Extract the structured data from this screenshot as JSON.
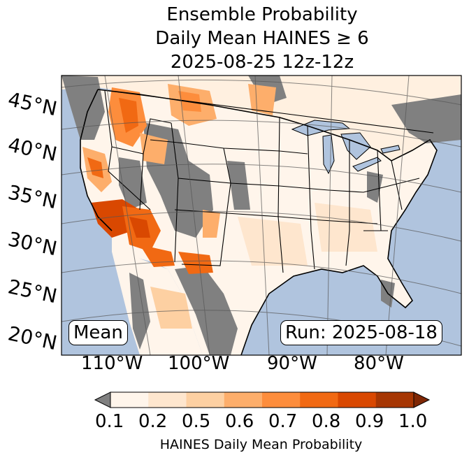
{
  "title": {
    "line1": "Ensemble Probability",
    "line2": "Daily Mean HAINES ≥ 6",
    "line3": "2025-08-25 12z-12z"
  },
  "map": {
    "lat_labels": [
      "45°N",
      "40°N",
      "35°N",
      "30°N",
      "25°N",
      "20°N"
    ],
    "lon_labels": [
      "110°W",
      "100°W",
      "90°W",
      "80°W"
    ],
    "stat_badge": "Mean",
    "run_badge": "Run: 2025-08-18",
    "colors": {
      "ocean": "#b0c4de",
      "no_data": "#808080",
      "land_low": "#fff5eb"
    }
  },
  "colorbar": {
    "ticks": [
      "0.1",
      "0.2",
      "0.5",
      "0.6",
      "0.7",
      "0.8",
      "0.9",
      "1.0"
    ],
    "label": "HAINES Daily Mean Probability",
    "colors": [
      "#fff5eb",
      "#fee6ce",
      "#fdd0a2",
      "#fdae6b",
      "#fd8d3c",
      "#f16913",
      "#d94801",
      "#a63603"
    ],
    "under_color": "#808080",
    "over_color": "#7f2704"
  }
}
